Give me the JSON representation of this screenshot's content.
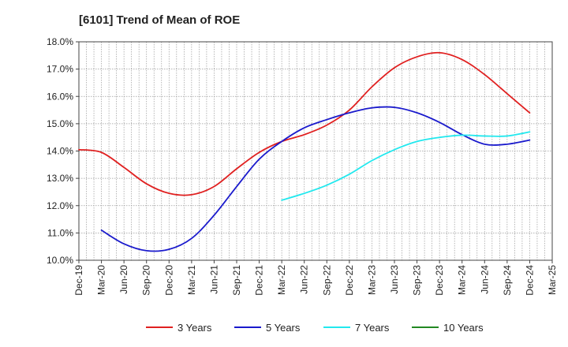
{
  "chart_data": {
    "type": "line",
    "title": "[6101]  Trend of Mean of ROE",
    "xlabel": "",
    "ylabel": "",
    "x": [
      "Dec-19",
      "Mar-20",
      "Jun-20",
      "Sep-20",
      "Dec-20",
      "Mar-21",
      "Jun-21",
      "Sep-21",
      "Dec-21",
      "Mar-22",
      "Jun-22",
      "Sep-22",
      "Dec-22",
      "Mar-23",
      "Jun-23",
      "Sep-23",
      "Dec-23",
      "Mar-24",
      "Jun-24",
      "Sep-24",
      "Dec-24",
      "Mar-25"
    ],
    "ylim": [
      10.0,
      18.0
    ],
    "yticks": [
      "10.0%",
      "11.0%",
      "12.0%",
      "13.0%",
      "14.0%",
      "15.0%",
      "16.0%",
      "17.0%",
      "18.0%"
    ],
    "grid": true,
    "legend_position": "bottom",
    "series": [
      {
        "name": "3 Years",
        "color": "#e02020",
        "values": [
          14.05,
          13.95,
          13.4,
          12.8,
          12.45,
          12.4,
          12.7,
          13.35,
          13.95,
          14.35,
          14.6,
          14.95,
          15.5,
          16.35,
          17.05,
          17.45,
          17.6,
          17.35,
          16.8,
          16.1,
          15.4,
          null
        ]
      },
      {
        "name": "5 Years",
        "color": "#1a1acc",
        "values": [
          null,
          11.1,
          10.6,
          10.35,
          10.4,
          10.8,
          11.65,
          12.7,
          13.7,
          14.35,
          14.85,
          15.15,
          15.4,
          15.58,
          15.6,
          15.4,
          15.05,
          14.6,
          14.25,
          14.25,
          14.4,
          null
        ]
      },
      {
        "name": "7 Years",
        "color": "#22e8ee",
        "values": [
          null,
          null,
          null,
          null,
          null,
          null,
          null,
          null,
          null,
          12.2,
          12.45,
          12.75,
          13.15,
          13.65,
          14.05,
          14.35,
          14.5,
          14.58,
          14.55,
          14.55,
          14.7,
          null
        ]
      },
      {
        "name": "10 Years",
        "color": "#228822",
        "values": [
          null,
          null,
          null,
          null,
          null,
          null,
          null,
          null,
          null,
          null,
          null,
          null,
          null,
          null,
          null,
          null,
          null,
          null,
          null,
          null,
          null,
          null
        ]
      }
    ]
  }
}
